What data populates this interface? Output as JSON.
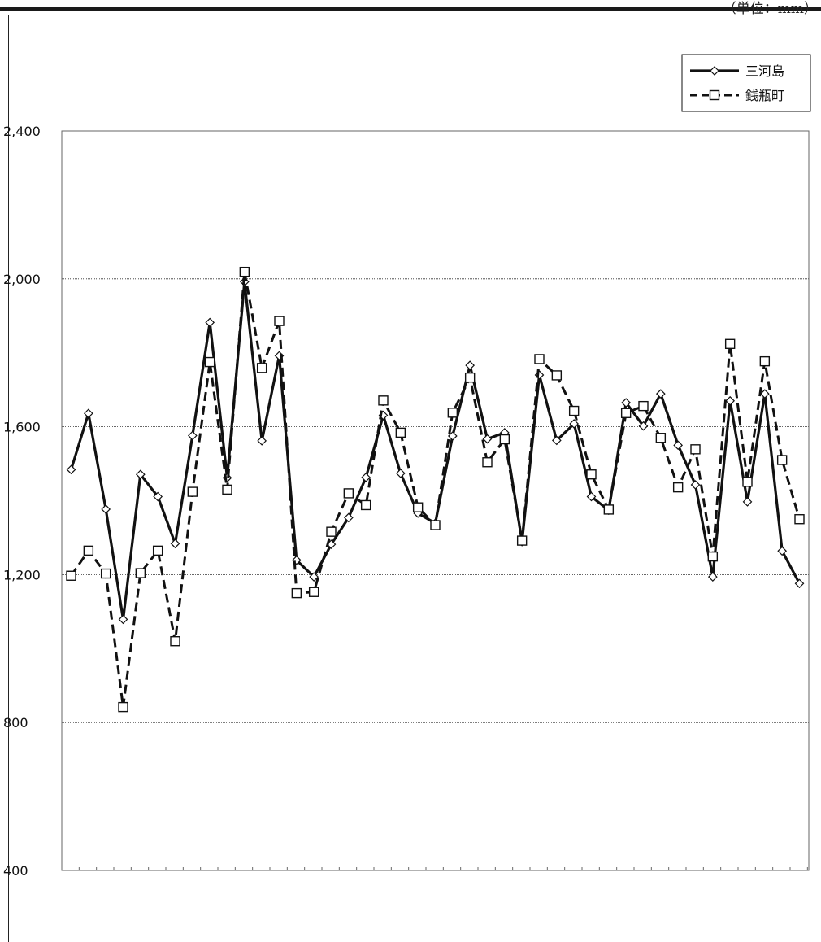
{
  "unit_label": "（単位：mm）",
  "colors": {
    "line": "#111111",
    "grid": "#333333",
    "frame": "#666666",
    "marker_fill": "#ffffff"
  },
  "chart_data": {
    "type": "line",
    "title": "",
    "xlabel": "",
    "ylabel": "",
    "ylim": [
      400,
      2400
    ],
    "yticks": [
      400,
      800,
      1200,
      1600,
      2000,
      2400
    ],
    "ytick_labels": [
      "400",
      "800",
      "1,200",
      "1,600",
      "2,000",
      "2,400"
    ],
    "grid": "horizontal",
    "legend_position": "top-right",
    "x": [
      1,
      2,
      3,
      4,
      5,
      6,
      7,
      8,
      9,
      10,
      11,
      12,
      13,
      14,
      15,
      16,
      17,
      18,
      19,
      20,
      21,
      22,
      23,
      24,
      25,
      26,
      27,
      28,
      29,
      30,
      31,
      32,
      33,
      34,
      35,
      36,
      37,
      38,
      39,
      40,
      41,
      42,
      43
    ],
    "series": [
      {
        "name": "三河島",
        "style": "solid",
        "marker": "diamond",
        "values": [
          1484,
          1636,
          1377,
          1079,
          1471,
          1411,
          1284,
          1576,
          1882,
          1462,
          1992,
          1562,
          1792,
          1239,
          1194,
          1282,
          1354,
          1463,
          1631,
          1474,
          1366,
          1339,
          1575,
          1766,
          1567,
          1584,
          1289,
          1740,
          1563,
          1608,
          1411,
          1374,
          1665,
          1602,
          1689,
          1550,
          1443,
          1194,
          1670,
          1397,
          1689,
          1264,
          1176
        ]
      },
      {
        "name": "銭瓶町",
        "style": "dashed",
        "marker": "square",
        "values": [
          1197,
          1265,
          1203,
          842,
          1204,
          1265,
          1020,
          1424,
          1775,
          1430,
          2019,
          1759,
          1886,
          1150,
          1153,
          1316,
          1420,
          1388,
          1671,
          1584,
          1382,
          1334,
          1638,
          1733,
          1504,
          1566,
          1292,
          1783,
          1739,
          1643,
          1471,
          1376,
          1637,
          1656,
          1570,
          1436,
          1539,
          1249,
          1824,
          1451,
          1777,
          1510,
          1350
        ]
      }
    ]
  }
}
